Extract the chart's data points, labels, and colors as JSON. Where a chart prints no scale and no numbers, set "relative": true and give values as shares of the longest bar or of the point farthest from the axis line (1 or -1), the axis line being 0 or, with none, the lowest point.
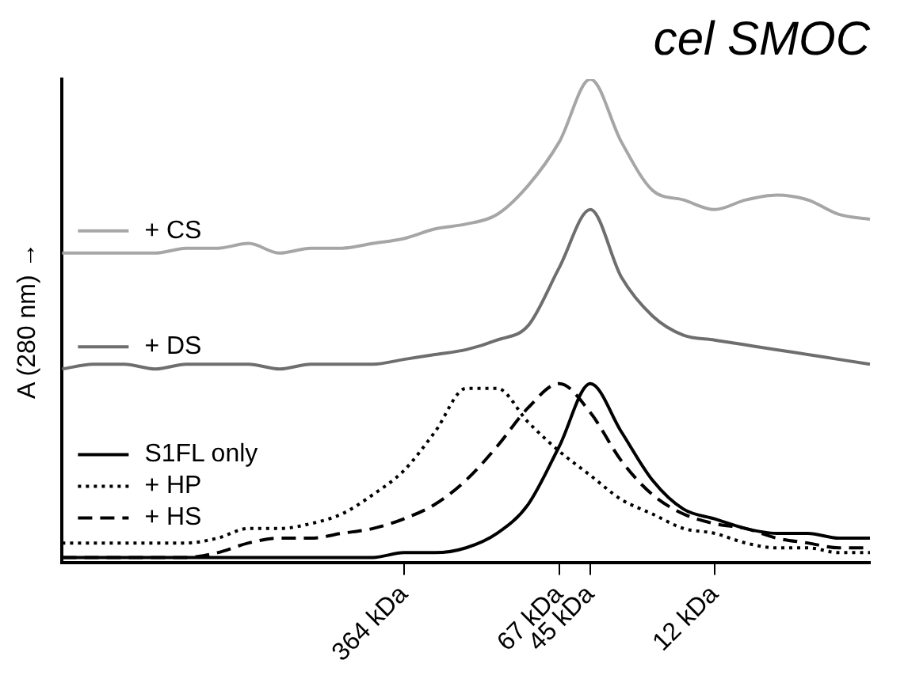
{
  "chart_data": {
    "type": "line",
    "title": "cel SMOC",
    "ylabel": "A (280 nm) →",
    "relative": true,
    "legend": "left",
    "marker": "none",
    "categories": [
      null,
      null,
      null,
      null,
      null,
      null,
      null,
      null,
      null,
      null,
      null,
      "364 kDa",
      null,
      null,
      null,
      null,
      "67 kDa",
      "45 kDa",
      null,
      null,
      null,
      "12 kDa",
      null,
      null,
      null,
      null,
      null
    ],
    "series": [
      {
        "name": "+ CS",
        "color": "#a6a6a6",
        "line_style": "solid",
        "values": [
          0.64,
          0.64,
          0.64,
          0.64,
          0.65,
          0.65,
          0.66,
          0.64,
          0.65,
          0.65,
          0.66,
          0.67,
          0.69,
          0.7,
          0.72,
          0.78,
          0.87,
          1.0,
          0.87,
          0.77,
          0.75,
          0.73,
          0.75,
          0.76,
          0.75,
          0.72,
          0.71
        ]
      },
      {
        "name": "+ DS",
        "color": "#6e6e6e",
        "line_style": "solid",
        "values": [
          0.4,
          0.41,
          0.41,
          0.4,
          0.41,
          0.41,
          0.41,
          0.4,
          0.41,
          0.41,
          0.41,
          0.42,
          0.43,
          0.44,
          0.46,
          0.49,
          0.61,
          0.73,
          0.59,
          0.51,
          0.47,
          0.46,
          0.45,
          0.44,
          0.43,
          0.42,
          0.41
        ]
      },
      {
        "name": "S1FL only",
        "color": "#000000",
        "line_style": "solid",
        "values": [
          0.01,
          0.01,
          0.01,
          0.01,
          0.01,
          0.01,
          0.01,
          0.01,
          0.01,
          0.01,
          0.01,
          0.02,
          0.02,
          0.03,
          0.06,
          0.12,
          0.24,
          0.37,
          0.27,
          0.17,
          0.11,
          0.09,
          0.07,
          0.06,
          0.06,
          0.05,
          0.05
        ]
      },
      {
        "name": "+ HP",
        "color": "#000000",
        "line_style": "dotted",
        "values": [
          0.04,
          0.04,
          0.04,
          0.04,
          0.04,
          0.05,
          0.07,
          0.07,
          0.08,
          0.1,
          0.14,
          0.19,
          0.27,
          0.36,
          0.36,
          0.29,
          0.23,
          0.18,
          0.13,
          0.1,
          0.07,
          0.06,
          0.04,
          0.03,
          0.03,
          0.02,
          0.02
        ]
      },
      {
        "name": "+ HS",
        "color": "#000000",
        "line_style": "dashed",
        "values": [
          0.01,
          0.01,
          0.01,
          0.01,
          0.01,
          0.02,
          0.04,
          0.05,
          0.05,
          0.06,
          0.07,
          0.09,
          0.12,
          0.17,
          0.24,
          0.32,
          0.37,
          0.31,
          0.21,
          0.14,
          0.1,
          0.08,
          0.07,
          0.05,
          0.04,
          0.03,
          0.03
        ]
      }
    ]
  }
}
